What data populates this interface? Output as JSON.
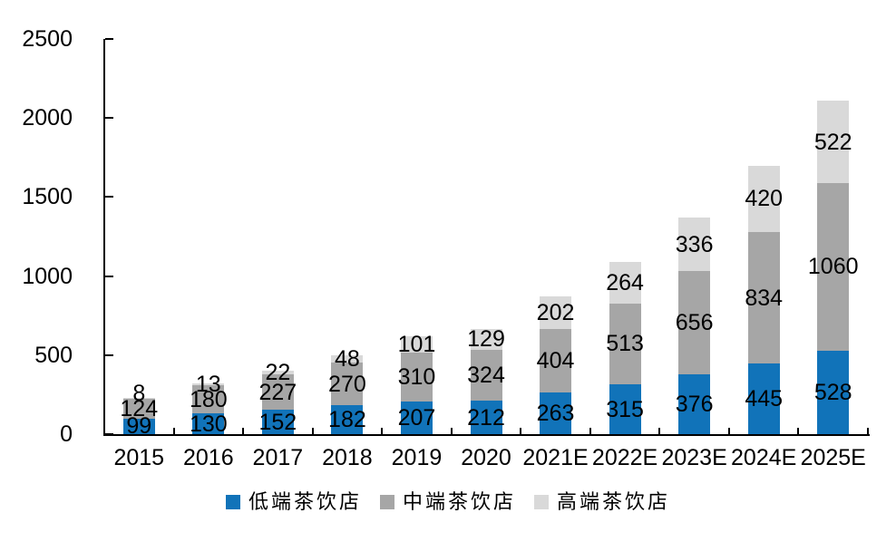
{
  "chart_data": {
    "type": "bar",
    "stacked": true,
    "title": "",
    "categories": [
      "2015",
      "2016",
      "2017",
      "2018",
      "2019",
      "2020",
      "2021E",
      "2022E",
      "2023E",
      "2024E",
      "2025E"
    ],
    "series": [
      {
        "name": "低端茶饮店",
        "color": "#1173B9",
        "values": [
          99,
          130,
          152,
          182,
          207,
          212,
          263,
          315,
          376,
          445,
          528
        ]
      },
      {
        "name": "中端茶饮店",
        "color": "#A6A6A6",
        "values": [
          124,
          180,
          227,
          270,
          310,
          324,
          404,
          513,
          656,
          834,
          1060
        ]
      },
      {
        "name": "高端茶饮店",
        "color": "#D9D9D9",
        "values": [
          8,
          13,
          22,
          48,
          101,
          129,
          202,
          264,
          336,
          420,
          522
        ]
      }
    ],
    "y_axis": {
      "min": 0,
      "max": 2500,
      "step": 500,
      "tick_labels": [
        "0",
        "500",
        "1000",
        "1500",
        "2000",
        "2500"
      ]
    },
    "grid": false,
    "legend_position": "bottom",
    "data_labels": "center",
    "axis_color": "#000000",
    "label_color": "#000000"
  }
}
